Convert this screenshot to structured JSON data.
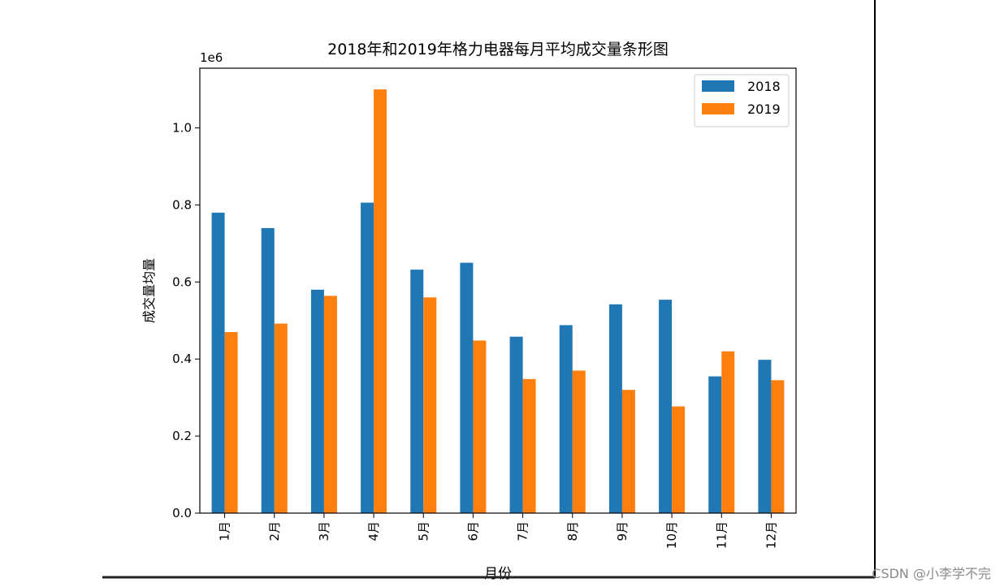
{
  "chart_data": {
    "type": "bar",
    "title": "2018年和2019年格力电器每月平均成交量条形图",
    "xlabel": "月份",
    "ylabel": "成交量均量",
    "y_multiplier_label": "1e6",
    "categories": [
      "1月",
      "2月",
      "3月",
      "4月",
      "5月",
      "6月",
      "7月",
      "8月",
      "9月",
      "10月",
      "11月",
      "12月"
    ],
    "series": [
      {
        "name": "2018",
        "color": "#1f77b4",
        "values": [
          780000,
          740000,
          580000,
          806000,
          632000,
          650000,
          458000,
          488000,
          542000,
          554000,
          355000,
          398000
        ]
      },
      {
        "name": "2019",
        "color": "#ff7f0e",
        "values": [
          470000,
          492000,
          564000,
          1100000,
          560000,
          448000,
          348000,
          370000,
          320000,
          277000,
          420000,
          345000
        ]
      }
    ],
    "ylim": [
      0,
      1155000
    ],
    "yticks": [
      0,
      200000,
      400000,
      600000,
      800000,
      1000000
    ],
    "ytick_labels": [
      "0.0",
      "0.2",
      "0.4",
      "0.6",
      "0.8",
      "1.0"
    ],
    "legend_position": "top-right",
    "grid": false
  },
  "watermark": "CSDN @小李学不完"
}
